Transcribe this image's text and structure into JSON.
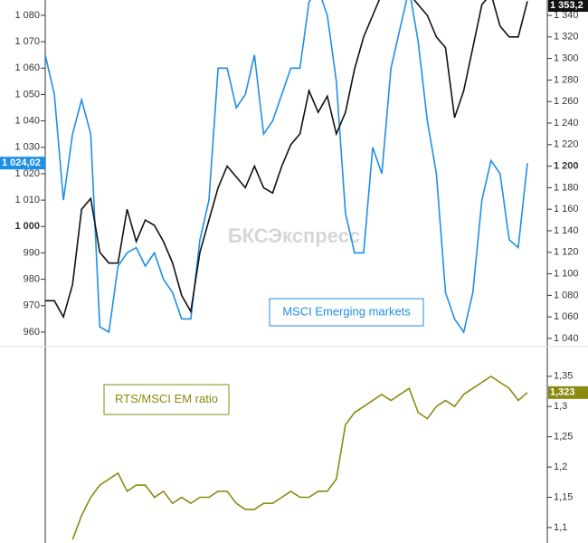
{
  "chart_data": [
    {
      "type": "line",
      "watermark": "БКСЭкспресс",
      "ylim": [
        954.5,
        1085.8
      ],
      "yticks": [
        {
          "value": 960,
          "label": "960"
        },
        {
          "value": 970,
          "label": "970"
        },
        {
          "value": 980,
          "label": "980"
        },
        {
          "value": 990,
          "label": "990"
        },
        {
          "value": 1000,
          "label": "1 000",
          "bold": true
        },
        {
          "value": 1010,
          "label": "1 010"
        },
        {
          "value": 1020,
          "label": "1 020"
        },
        {
          "value": 1030,
          "label": "1 030"
        },
        {
          "value": 1040,
          "label": "1 040"
        },
        {
          "value": 1050,
          "label": "1 050"
        },
        {
          "value": 1060,
          "label": "1 060"
        },
        {
          "value": 1070,
          "label": "1 070"
        },
        {
          "value": 1080,
          "label": "1 080"
        }
      ],
      "y2lim": [
        1032.4,
        1354.3
      ],
      "y2ticks": [
        {
          "value": 1040,
          "label": "1 040"
        },
        {
          "value": 1060,
          "label": "1 060"
        },
        {
          "value": 1080,
          "label": "1 080"
        },
        {
          "value": 1100,
          "label": "1 100"
        },
        {
          "value": 1120,
          "label": "1 120"
        },
        {
          "value": 1140,
          "label": "1 140"
        },
        {
          "value": 1160,
          "label": "1 160"
        },
        {
          "value": 1180,
          "label": "1 180"
        },
        {
          "value": 1200,
          "label": "1 200",
          "bold": true
        },
        {
          "value": 1220,
          "label": "1 220"
        },
        {
          "value": 1240,
          "label": "1 240"
        },
        {
          "value": 1260,
          "label": "1 260"
        },
        {
          "value": 1280,
          "label": "1 280"
        },
        {
          "value": 1300,
          "label": "1 300"
        },
        {
          "value": 1320,
          "label": "1 320"
        },
        {
          "value": 1340,
          "label": "1 340"
        }
      ],
      "series": [
        {
          "name": "MSCI Emerging markets",
          "color": "#1e8fe6",
          "axis": "y",
          "last_label": "1 024,02",
          "values": [
            1065,
            1050,
            1010,
            1035,
            1048,
            1035,
            962,
            960,
            985,
            990,
            992,
            985,
            990,
            980,
            975,
            965,
            965,
            995,
            1010,
            1060,
            1060,
            1045,
            1050,
            1065,
            1035,
            1040,
            1050,
            1060,
            1060,
            1085,
            1090,
            1080,
            1055,
            1005,
            990,
            990,
            1030,
            1020,
            1060,
            1075,
            1090,
            1070,
            1040,
            1020,
            975,
            965,
            960,
            975,
            1010,
            1025,
            1020,
            995,
            992,
            1024.02
          ]
        },
        {
          "color": "#111111",
          "axis": "y2",
          "last_label": "1 353,2",
          "values": [
            1075,
            1075,
            1060,
            1090,
            1160,
            1170,
            1120,
            1110,
            1110,
            1160,
            1130,
            1150,
            1145,
            1130,
            1110,
            1080,
            1065,
            1120,
            1150,
            1180,
            1200,
            1190,
            1180,
            1200,
            1180,
            1175,
            1200,
            1220,
            1230,
            1270,
            1250,
            1265,
            1230,
            1250,
            1290,
            1320,
            1340,
            1360,
            1370,
            1360,
            1360,
            1350,
            1340,
            1320,
            1310,
            1245,
            1270,
            1310,
            1350,
            1360,
            1330,
            1320,
            1320,
            1353.2
          ]
        }
      ]
    },
    {
      "type": "line",
      "y2lim": [
        1.0745,
        1.399
      ],
      "y2ticks": [
        {
          "value": 1.1,
          "label": "1,1"
        },
        {
          "value": 1.15,
          "label": "1,15"
        },
        {
          "value": 1.2,
          "label": "1,2"
        },
        {
          "value": 1.25,
          "label": "1,25"
        },
        {
          "value": 1.3,
          "label": "1,3"
        },
        {
          "value": 1.35,
          "label": "1,35"
        }
      ],
      "series": [
        {
          "name": "RTS/MSCI EM ratio",
          "color": "#8a8a10",
          "axis": "y2",
          "last_label": "1,323",
          "values": [
            null,
            null,
            null,
            1.08,
            1.12,
            1.15,
            1.17,
            1.18,
            1.19,
            1.16,
            1.17,
            1.17,
            1.15,
            1.16,
            1.14,
            1.15,
            1.14,
            1.15,
            1.15,
            1.16,
            1.16,
            1.14,
            1.13,
            1.13,
            1.14,
            1.14,
            1.15,
            1.16,
            1.15,
            1.15,
            1.16,
            1.16,
            1.18,
            1.27,
            1.29,
            1.3,
            1.31,
            1.32,
            1.31,
            1.32,
            1.33,
            1.29,
            1.28,
            1.3,
            1.31,
            1.3,
            1.32,
            1.33,
            1.34,
            1.35,
            1.34,
            1.33,
            1.31,
            1.323
          ]
        }
      ]
    }
  ]
}
